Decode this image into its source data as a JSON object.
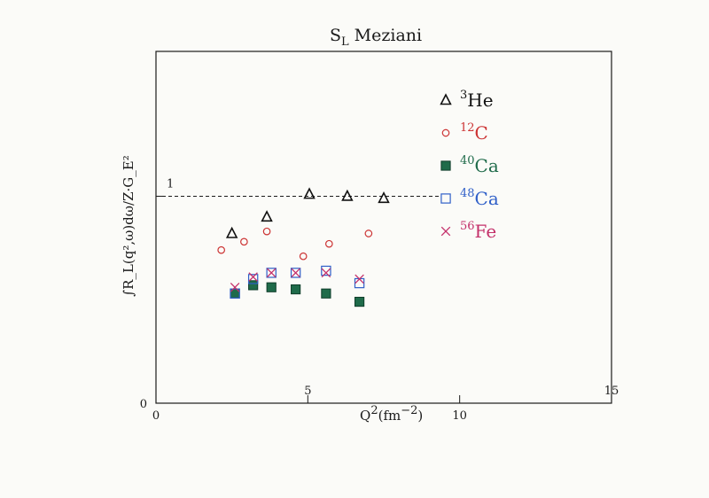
{
  "chart_data": {
    "type": "scatter",
    "title_main": "S",
    "title_sub": "L",
    "title_rest": "Meziani",
    "xlabel_main": "Q",
    "xlabel_sup": "2",
    "xlabel_rest": "(fm",
    "xlabel_exp": "−2",
    "xlabel_close": ")",
    "ylabel": "∫R_L(q²,ω)dω/Z·G_E²",
    "xlim": [
      0,
      15
    ],
    "ylim": [
      0,
      1.7
    ],
    "x_ticks_top": [
      {
        "value": 5,
        "label": "5"
      },
      {
        "value": 15,
        "label": "15"
      }
    ],
    "x_ticks_bottom": [
      {
        "value": 0,
        "label": "0"
      },
      {
        "value": 10,
        "label": "10"
      }
    ],
    "y_ticks": [
      {
        "value": 0,
        "label": "0"
      },
      {
        "value": 1,
        "label": "1"
      }
    ],
    "reference_line": {
      "y": 1.0,
      "label": "1",
      "x_start": 0,
      "x_end": 9.4,
      "style": "dashed"
    },
    "grid": false,
    "legend_position": "right",
    "colors": {
      "he3": "#111111",
      "c12": "#cc3333",
      "ca40": "#1f6b4a",
      "ca48": "#2f5fc8",
      "fe56": "#c4306a"
    },
    "series": [
      {
        "key": "he3",
        "name": "³He",
        "label_sup": "3",
        "label_base": "He",
        "marker": "triangle",
        "x": [
          2.5,
          3.65,
          5.05,
          6.3,
          7.5
        ],
        "y": [
          0.82,
          0.9,
          1.01,
          1.0,
          0.99
        ]
      },
      {
        "key": "c12",
        "name": "¹²C",
        "label_sup": "12",
        "label_base": "C",
        "marker": "circle",
        "x": [
          2.15,
          2.9,
          3.65,
          4.85,
          5.7,
          7.0
        ],
        "y": [
          0.74,
          0.78,
          0.83,
          0.71,
          0.77,
          0.82
        ]
      },
      {
        "key": "ca40",
        "name": "⁴⁰Ca",
        "label_sup": "40",
        "label_base": "Ca",
        "marker": "filled-square",
        "x": [
          2.6,
          3.2,
          3.8,
          4.6,
          5.6,
          6.7
        ],
        "y": [
          0.53,
          0.57,
          0.56,
          0.55,
          0.53,
          0.49
        ]
      },
      {
        "key": "ca48",
        "name": "⁴⁸Ca",
        "label_sup": "48",
        "label_base": "Ca",
        "marker": "open-square",
        "x": [
          2.6,
          3.2,
          3.8,
          4.6,
          5.6,
          6.7
        ],
        "y": [
          0.53,
          0.6,
          0.63,
          0.63,
          0.64,
          0.58
        ]
      },
      {
        "key": "fe56",
        "name": "⁵⁶Fe",
        "label_sup": "56",
        "label_base": "Fe",
        "marker": "x",
        "x": [
          2.6,
          3.2,
          3.8,
          4.6,
          5.6,
          6.7
        ],
        "y": [
          0.56,
          0.61,
          0.63,
          0.63,
          0.63,
          0.6
        ]
      }
    ]
  }
}
